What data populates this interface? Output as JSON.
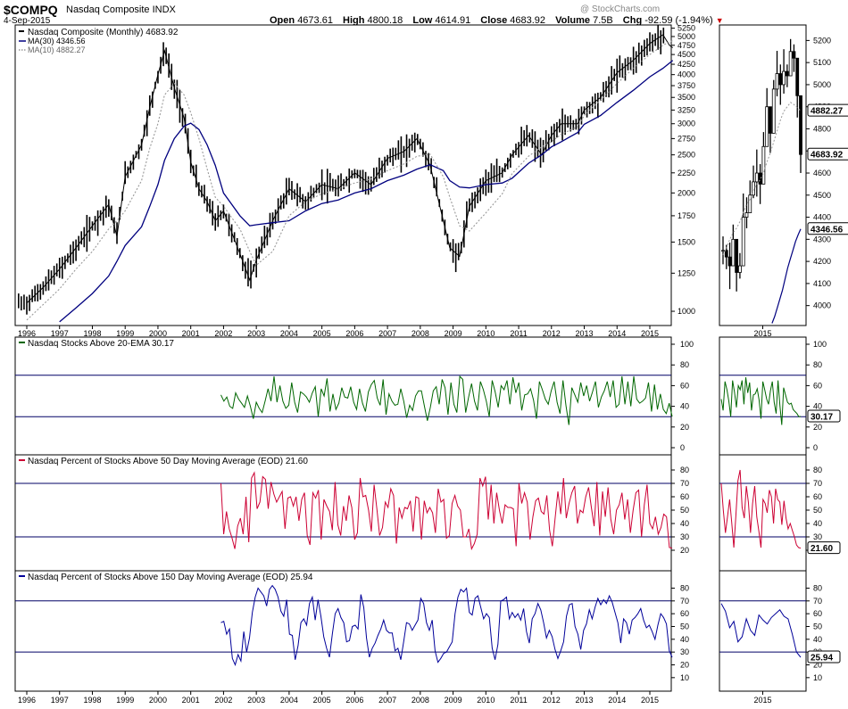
{
  "header": {
    "symbol": "$COMPQ",
    "company": "Nasdaq Composite INDX",
    "date": "4-Sep-2015",
    "watermark": "@ StockCharts.com",
    "open_label": "Open",
    "open": "4673.61",
    "high_label": "High",
    "high": "4800.18",
    "low_label": "Low",
    "low": "4614.91",
    "close_label": "Close",
    "close": "4683.92",
    "volume_label": "Volume",
    "volume": "7.5B",
    "chg_label": "Chg",
    "chg": "-92.59 (-1.94%)"
  },
  "colors": {
    "ma30": "#00007f",
    "ma10": "#999999",
    "price": "#000000",
    "ema20": "#006600",
    "ma50": "#cc0033",
    "ma150": "#000099",
    "hline": "#000066"
  },
  "chart_data": [
    {
      "type": "line",
      "title": "Nasdaq Composite (Monthly) 4683.92",
      "scale": "log",
      "ylim": [
        920,
        5350
      ],
      "yticks": [
        1000,
        1250,
        1500,
        1750,
        2000,
        2250,
        2500,
        2750,
        3000,
        3250,
        3500,
        3750,
        4000,
        4250,
        4500,
        4750,
        5000,
        5250
      ],
      "xticks": [
        "1996",
        "1997",
        "1998",
        "1999",
        "2000",
        "2001",
        "2002",
        "2003",
        "2004",
        "2005",
        "2006",
        "2007",
        "2008",
        "2009",
        "2010",
        "2011",
        "2012",
        "2013",
        "2014",
        "2015"
      ],
      "legend": [
        {
          "name": "MA(30) 4346.56",
          "style": "solid",
          "color": "#00007f"
        },
        {
          "name": "MA(10) 4882.27",
          "style": "dotted",
          "color": "#999999"
        }
      ],
      "last_value_label": "4683.92",
      "x": [
        1996,
        1996.5,
        1997,
        1997.5,
        1998,
        1998.5,
        1998.75,
        1999,
        1999.5,
        1999.75,
        2000,
        2000.2,
        2000.5,
        2000.8,
        2001,
        2001.25,
        2001.5,
        2001.75,
        2002,
        2002.5,
        2002.8,
        2003,
        2003.5,
        2004,
        2004.5,
        2005,
        2005.5,
        2006,
        2006.5,
        2007,
        2007.5,
        2007.9,
        2008.3,
        2008.7,
        2008.9,
        2009.2,
        2009.5,
        2010,
        2010.5,
        2010.8,
        2011.3,
        2011.7,
        2012,
        2012.3,
        2012.8,
        2013,
        2013.5,
        2014,
        2014.5,
        2015,
        2015.4,
        2015.6,
        2015.7
      ],
      "close": [
        1050,
        1150,
        1280,
        1450,
        1650,
        1870,
        1550,
        2200,
        2650,
        3300,
        4000,
        4600,
        3700,
        3100,
        2400,
        2050,
        1900,
        1700,
        1800,
        1400,
        1200,
        1350,
        1700,
        2050,
        1900,
        2100,
        2050,
        2250,
        2100,
        2450,
        2550,
        2750,
        2350,
        1700,
        1450,
        1380,
        1850,
        2150,
        2250,
        2500,
        2800,
        2500,
        2800,
        3000,
        3000,
        3250,
        3500,
        4050,
        4350,
        4800,
        5050,
        4750,
        4683.92
      ],
      "ma30": [
        800,
        860,
        940,
        1020,
        1110,
        1230,
        1340,
        1470,
        1640,
        1850,
        2100,
        2420,
        2750,
        2960,
        3010,
        2900,
        2650,
        2350,
        2000,
        1750,
        1650,
        1660,
        1680,
        1700,
        1800,
        1880,
        1920,
        2000,
        2050,
        2150,
        2220,
        2300,
        2360,
        2280,
        2150,
        2070,
        2060,
        2100,
        2120,
        2180,
        2380,
        2500,
        2620,
        2700,
        2850,
        2990,
        3150,
        3400,
        3650,
        3950,
        4150,
        4280,
        4346.56
      ],
      "ma10": [
        950,
        1040,
        1140,
        1280,
        1420,
        1620,
        1700,
        1800,
        2150,
        2600,
        3000,
        3550,
        3800,
        3550,
        3200,
        2750,
        2300,
        1950,
        1850,
        1620,
        1420,
        1310,
        1420,
        1750,
        1900,
        1990,
        2050,
        2120,
        2170,
        2280,
        2370,
        2480,
        2510,
        2200,
        1950,
        1650,
        1600,
        1780,
        1990,
        2240,
        2480,
        2620,
        2700,
        2820,
        2950,
        3150,
        3450,
        3800,
        4150,
        4500,
        4750,
        4850,
        4882.27
      ]
    },
    {
      "type": "line",
      "title": "Nasdaq Stocks Above 20-EMA 30.17",
      "ylim": [
        0,
        100
      ],
      "yticks": [
        0,
        20,
        40,
        60,
        80,
        100
      ],
      "hlines": [
        30,
        70
      ],
      "last_value_label": "30.17",
      "series": [
        {
          "name": "Above 20-EMA",
          "values": [
            51,
            45,
            49,
            40,
            38,
            53,
            47,
            43,
            39,
            50,
            40,
            28,
            44,
            38,
            34,
            45,
            57,
            45,
            69,
            44,
            60,
            45,
            38,
            41,
            63,
            44,
            34,
            54,
            52,
            49,
            44,
            53,
            59,
            30,
            57,
            50,
            67,
            35,
            52,
            37,
            43,
            58,
            49,
            48,
            59,
            44,
            37,
            57,
            43,
            35,
            54,
            61,
            65,
            48,
            41,
            66,
            32,
            52,
            45,
            41,
            42,
            57,
            45,
            29,
            41,
            36,
            50,
            55,
            55,
            40,
            26,
            39,
            55,
            59,
            42,
            66,
            58,
            32,
            63,
            42,
            34,
            69,
            66,
            34,
            49,
            62,
            45,
            36,
            64,
            56,
            45,
            30,
            65,
            54,
            39,
            60,
            56,
            65,
            42,
            68,
            53,
            63,
            36,
            51,
            52,
            57,
            46,
            28,
            64,
            56,
            47,
            42,
            55,
            64,
            44,
            33,
            65,
            41,
            22,
            58,
            51,
            44,
            63,
            50,
            60,
            45,
            54,
            64,
            39,
            49,
            55,
            64,
            49,
            65,
            39,
            42,
            69,
            42,
            64,
            40,
            69,
            47,
            43,
            45,
            48,
            63,
            35,
            61,
            37,
            52,
            37,
            33,
            43,
            30.17
          ]
        }
      ]
    },
    {
      "type": "line",
      "title": "Nasdaq Percent of Stocks Above 50 Day Moving Average (EOD) 21.60",
      "ylim": [
        10,
        86
      ],
      "yticks": [
        20,
        30,
        40,
        50,
        60,
        70,
        80
      ],
      "hlines": [
        30,
        70
      ],
      "last_value_label": "21.60",
      "series": [
        {
          "name": "Above 50 DMA",
          "values": [
            70,
            32,
            49,
            36,
            29,
            21,
            38,
            44,
            32,
            60,
            26,
            74,
            78,
            51,
            56,
            75,
            73,
            51,
            71,
            62,
            56,
            60,
            64,
            36,
            59,
            60,
            53,
            60,
            42,
            58,
            63,
            31,
            24,
            63,
            59,
            65,
            28,
            58,
            53,
            49,
            35,
            71,
            39,
            31,
            53,
            42,
            61,
            52,
            28,
            33,
            74,
            60,
            61,
            50,
            34,
            69,
            51,
            31,
            37,
            56,
            52,
            66,
            61,
            25,
            52,
            44,
            52,
            51,
            57,
            34,
            60,
            59,
            28,
            57,
            48,
            52,
            48,
            33,
            66,
            56,
            58,
            29,
            31,
            55,
            61,
            53,
            50,
            30,
            30,
            36,
            21,
            25,
            32,
            74,
            68,
            75,
            43,
            69,
            40,
            63,
            50,
            40,
            54,
            52,
            52,
            51,
            23,
            70,
            55,
            63,
            56,
            28,
            45,
            57,
            59,
            49,
            47,
            61,
            35,
            23,
            44,
            64,
            47,
            74,
            44,
            55,
            63,
            68,
            40,
            50,
            48,
            60,
            67,
            52,
            38,
            71,
            31,
            64,
            45,
            67,
            43,
            32,
            50,
            54,
            63,
            43,
            58,
            33,
            50,
            63,
            65,
            30,
            54,
            69,
            40,
            36,
            45,
            32,
            37,
            47,
            45,
            22,
            21.6
          ]
        }
      ]
    },
    {
      "type": "line",
      "title": "Nasdaq Percent of Stocks Above 150 Day Moving Average (EOD) 25.94",
      "ylim": [
        5,
        88
      ],
      "yticks": [
        10,
        20,
        30,
        40,
        50,
        60,
        70,
        80
      ],
      "hlines": [
        30,
        70
      ],
      "last_value_label": "25.94",
      "series": [
        {
          "name": "Above 150 DMA",
          "values": [
            53,
            54,
            44,
            48,
            25,
            20,
            28,
            23,
            46,
            30,
            41,
            61,
            73,
            80,
            77,
            74,
            66,
            79,
            82,
            79,
            73,
            62,
            58,
            71,
            44,
            43,
            24,
            35,
            53,
            56,
            51,
            68,
            73,
            55,
            71,
            58,
            42,
            33,
            26,
            44,
            60,
            64,
            57,
            53,
            38,
            39,
            50,
            51,
            48,
            75,
            65,
            41,
            26,
            33,
            37,
            43,
            48,
            55,
            47,
            45,
            45,
            31,
            33,
            24,
            38,
            53,
            52,
            47,
            51,
            55,
            72,
            68,
            53,
            47,
            55,
            31,
            22,
            25,
            29,
            30,
            34,
            38,
            60,
            73,
            79,
            77,
            80,
            61,
            59,
            72,
            74,
            65,
            56,
            60,
            57,
            33,
            24,
            36,
            70,
            71,
            73,
            56,
            61,
            57,
            60,
            55,
            64,
            46,
            37,
            56,
            60,
            68,
            63,
            53,
            41,
            47,
            42,
            32,
            25,
            31,
            38,
            58,
            67,
            68,
            50,
            44,
            32,
            47,
            52,
            63,
            56,
            65,
            72,
            67,
            71,
            68,
            74,
            69,
            61,
            53,
            37,
            56,
            53,
            44,
            55,
            57,
            60,
            64,
            55,
            49,
            51,
            46,
            40,
            51,
            60,
            57,
            52,
            31,
            25.94
          ]
        }
      ]
    }
  ],
  "zoom": {
    "year_label": "2015",
    "price_yticks": [
      4000,
      4100,
      4200,
      4300,
      4400,
      4500,
      4600,
      4700,
      4800,
      4900,
      5000,
      5100,
      5200
    ],
    "price_ylim": [
      3930,
      5250
    ],
    "price_labels": {
      "ma10": "4882.27",
      "close": "4683.92",
      "ma30": "4346.56"
    },
    "close": [
      4250,
      4220,
      4180,
      4300,
      4150,
      4180,
      4400,
      4420,
      4500,
      4560,
      4600,
      4550,
      4720,
      4900,
      4780,
      4980,
      5050,
      5000,
      5060,
      5040,
      5150,
      5120,
      4950,
      4683.92
    ],
    "ma10": [
      4230,
      4260,
      4300,
      4330,
      4350,
      4380,
      4420,
      4460,
      4480,
      4520,
      4550,
      4570,
      4600,
      4650,
      4690,
      4740,
      4790,
      4840,
      4880,
      4900,
      4920,
      4910,
      4895,
      4882.27
    ],
    "ma30": [
      3900,
      3920,
      3950,
      3990,
      4030,
      4070,
      4120,
      4170,
      4210,
      4250,
      4290,
      4320,
      4346.56
    ],
    "ema20": [
      47,
      36,
      64,
      56,
      45,
      30,
      65,
      54,
      39,
      60,
      56,
      65,
      42,
      68,
      53,
      63,
      36,
      51,
      52,
      57,
      46,
      28,
      64,
      56,
      47,
      42,
      55,
      64,
      44,
      33,
      65,
      41,
      22,
      58,
      51,
      44,
      42,
      43,
      37,
      35,
      33,
      30,
      30.17
    ],
    "ma50": [
      70,
      50,
      33,
      45,
      58,
      41,
      22,
      46,
      72,
      80,
      52,
      44,
      68,
      56,
      33,
      55,
      68,
      45,
      34,
      22,
      58,
      55,
      48,
      65,
      60,
      40,
      66,
      58,
      56,
      39,
      57,
      44,
      36,
      40,
      35,
      30,
      24,
      22,
      21.6
    ],
    "ma150": [
      68,
      62,
      49,
      54,
      38,
      42,
      56,
      47,
      43,
      59,
      55,
      52,
      57,
      60,
      63,
      58,
      56,
      44,
      30,
      25.94
    ]
  }
}
